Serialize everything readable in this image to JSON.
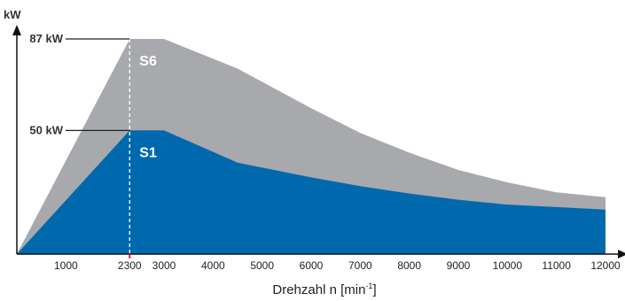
{
  "chart_data": {
    "type": "area",
    "ylabel": "kW",
    "xlabel": {
      "text": "Drehzahl n [min",
      "sup": "-1",
      "close": "]"
    },
    "xlim": [
      0,
      12200
    ],
    "ylim": [
      0,
      100
    ],
    "x_ticks": [
      1000,
      2300,
      3000,
      4000,
      5000,
      6000,
      7000,
      8000,
      9000,
      10000,
      11000,
      12000
    ],
    "x_tick_labels": [
      "1000",
      "2300",
      "3000",
      "4000",
      "5000",
      "6000",
      "7000",
      "8000",
      "9000",
      "10000",
      "11000",
      "12000"
    ],
    "series": [
      {
        "name": "S6",
        "color": "#a7a9ac",
        "points": [
          [
            0,
            0
          ],
          [
            2300,
            87
          ],
          [
            3000,
            87
          ],
          [
            4500,
            75
          ],
          [
            6000,
            59
          ],
          [
            7000,
            49
          ],
          [
            8000,
            41
          ],
          [
            9000,
            34
          ],
          [
            10000,
            29
          ],
          [
            11000,
            25
          ],
          [
            12000,
            23
          ]
        ]
      },
      {
        "name": "S1",
        "color": "#0069ad",
        "points": [
          [
            0,
            0
          ],
          [
            2300,
            50
          ],
          [
            3000,
            50
          ],
          [
            4500,
            37
          ],
          [
            6000,
            31
          ],
          [
            7000,
            27.5
          ],
          [
            8000,
            24.5
          ],
          [
            9000,
            22
          ],
          [
            10000,
            20
          ],
          [
            11000,
            19
          ],
          [
            12000,
            18
          ]
        ]
      }
    ],
    "annotations": [
      {
        "text": "87 kW",
        "value": 87
      },
      {
        "text": "50 kW",
        "value": 50
      }
    ],
    "marker_line": {
      "x": 2300,
      "style": "dashed",
      "color": "#ffffff",
      "tick_color": "#e0202a"
    },
    "axis_color": "#111111"
  }
}
